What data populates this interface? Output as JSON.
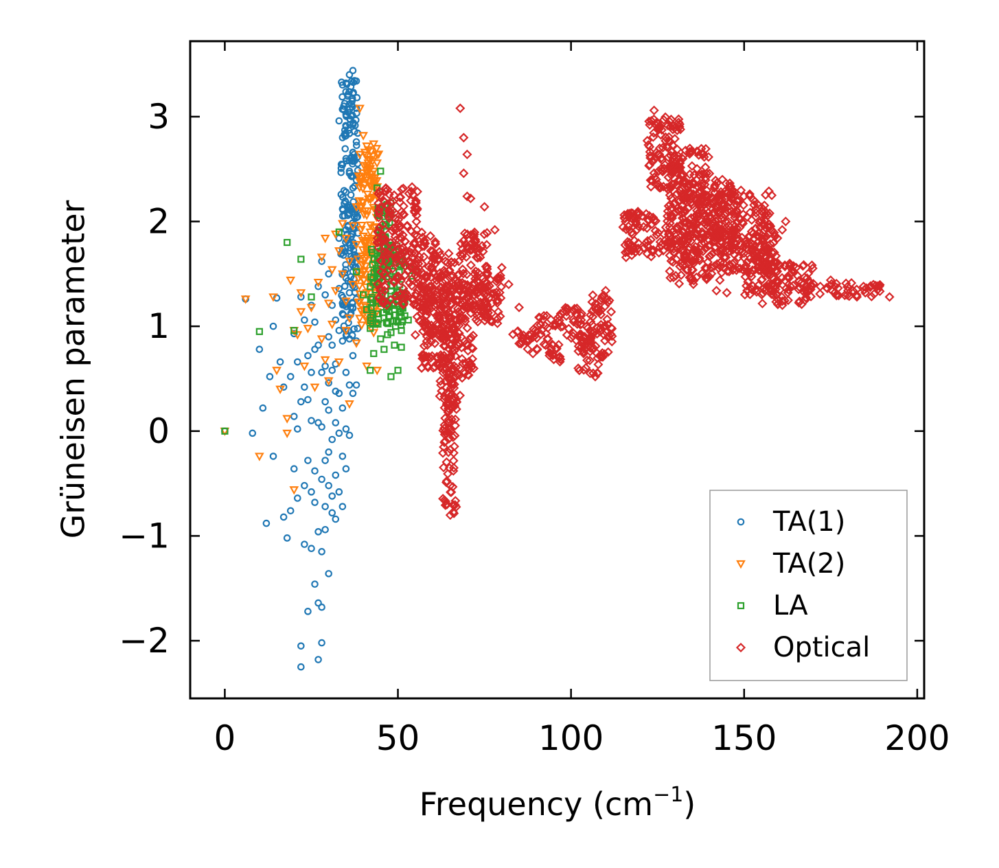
{
  "chart_data": {
    "type": "scatter",
    "title": "",
    "xlabel": "Frequency (cm",
    "xlabel_sup": "−1",
    "xlabel_close": ")",
    "ylabel": "Grüneisen parameter",
    "xlim": [
      -10,
      202
    ],
    "ylim": [
      -2.55,
      3.72
    ],
    "xticks": [
      0,
      50,
      100,
      150,
      200
    ],
    "xtick_labels": [
      "0",
      "50",
      "100",
      "150",
      "200"
    ],
    "yticks": [
      -2,
      -1,
      0,
      1,
      2,
      3
    ],
    "ytick_labels": [
      "−2",
      "−1",
      "0",
      "1",
      "2",
      "3"
    ],
    "legend_position": "lower-right",
    "grid": false,
    "series": [
      {
        "name": "TA(1)",
        "marker": "circle",
        "color": "#1f77b4",
        "points": [
          [
            0,
            0
          ],
          [
            6,
            1.26
          ],
          [
            8,
            -0.02
          ],
          [
            10,
            0.78
          ],
          [
            11,
            0.22
          ],
          [
            12,
            -0.88
          ],
          [
            13,
            0.52
          ],
          [
            14,
            1
          ],
          [
            14,
            -0.24
          ],
          [
            15,
            1.27
          ],
          [
            16,
            0.66
          ],
          [
            17,
            0.42
          ],
          [
            17,
            -0.82
          ],
          [
            18,
            -1.02
          ],
          [
            19,
            0.52
          ],
          [
            19,
            -0.76
          ],
          [
            20,
            0.93
          ],
          [
            20,
            -0.36
          ],
          [
            20,
            0.14
          ],
          [
            21,
            0.66
          ],
          [
            21,
            -0.64
          ],
          [
            21,
            0.02
          ],
          [
            22,
            1.28
          ],
          [
            22,
            0.28
          ],
          [
            22,
            -2.05
          ],
          [
            22,
            -2.25
          ],
          [
            23,
            1.06
          ],
          [
            23,
            0.42
          ],
          [
            23,
            -1.08
          ],
          [
            23,
            -0.52
          ],
          [
            24,
            0.72
          ],
          [
            24,
            0.3
          ],
          [
            24,
            -0.28
          ],
          [
            24,
            -1.72
          ],
          [
            25,
            1.2
          ],
          [
            25,
            0.56
          ],
          [
            25,
            -0.58
          ],
          [
            25,
            -1.12
          ],
          [
            25,
            0.1
          ],
          [
            26,
            1.04
          ],
          [
            26,
            0.78
          ],
          [
            26,
            -0.68
          ],
          [
            26,
            -1.46
          ],
          [
            26,
            -0.38
          ],
          [
            27,
            1.38
          ],
          [
            27,
            0.82
          ],
          [
            27,
            0.08
          ],
          [
            27,
            -0.96
          ],
          [
            27,
            -1.64
          ],
          [
            27,
            -2.18
          ],
          [
            28,
            1.62
          ],
          [
            28,
            0.56
          ],
          [
            28,
            0.04
          ],
          [
            28,
            -0.46
          ],
          [
            28,
            -1.15
          ],
          [
            28,
            -2.02
          ],
          [
            28,
            -1.68
          ],
          [
            29,
            1.3
          ],
          [
            29,
            0.62
          ],
          [
            29,
            0.28
          ],
          [
            29,
            -0.28
          ],
          [
            29,
            -0.72
          ],
          [
            29,
            -0.94
          ],
          [
            30,
            1.5
          ],
          [
            30,
            0.9
          ],
          [
            30,
            0.46
          ],
          [
            30,
            0.2
          ],
          [
            30,
            -0.2
          ],
          [
            30,
            -0.52
          ],
          [
            30,
            -1.36
          ],
          [
            31,
            1.2
          ],
          [
            31,
            0.82
          ],
          [
            31,
            0.58
          ],
          [
            31,
            -0.08
          ],
          [
            31,
            -0.62
          ],
          [
            31,
            -0.78
          ],
          [
            32,
            1.06
          ],
          [
            32,
            0.64
          ],
          [
            32,
            0.38
          ],
          [
            32,
            0.08
          ],
          [
            32,
            -0.42
          ],
          [
            32,
            -0.84
          ],
          [
            33,
            1.84
          ],
          [
            33,
            1.36
          ],
          [
            33,
            0.96
          ],
          [
            33,
            0.36
          ],
          [
            33,
            -0.02
          ],
          [
            33,
            -0.58
          ],
          [
            33,
            2.96
          ],
          [
            34,
            2.8
          ],
          [
            34,
            2.54
          ],
          [
            34,
            2.12
          ],
          [
            34,
            1.74
          ],
          [
            34,
            1.12
          ],
          [
            34,
            0.86
          ],
          [
            34,
            0.22
          ],
          [
            34,
            -0.24
          ],
          [
            34,
            -0.72
          ],
          [
            35,
            3.32
          ],
          [
            35,
            3.02
          ],
          [
            35,
            2.6
          ],
          [
            35,
            2.28
          ],
          [
            35,
            1.92
          ],
          [
            35,
            1.46
          ],
          [
            35,
            0.96
          ],
          [
            35,
            0.56
          ],
          [
            35,
            0.02
          ],
          [
            35,
            -0.36
          ],
          [
            36,
            3.4
          ],
          [
            36,
            3.12
          ],
          [
            36,
            2.84
          ],
          [
            36,
            2.48
          ],
          [
            36,
            2.08
          ],
          [
            36,
            1.72
          ],
          [
            36,
            1.32
          ],
          [
            36,
            0.88
          ],
          [
            36,
            0.44
          ],
          [
            36,
            -0.04
          ],
          [
            37,
            3.44
          ],
          [
            37,
            3.22
          ],
          [
            37,
            2.94
          ],
          [
            37,
            2.66
          ],
          [
            37,
            2.32
          ],
          [
            37,
            1.94
          ],
          [
            37,
            1.58
          ],
          [
            37,
            1.18
          ],
          [
            37,
            0.72
          ],
          [
            37,
            0.36
          ],
          [
            38,
            3.34
          ],
          [
            38,
            3.08
          ],
          [
            38,
            2.76
          ],
          [
            38,
            2.44
          ],
          [
            38,
            2.12
          ],
          [
            38,
            1.62
          ],
          [
            38,
            1.26
          ],
          [
            38,
            0.86
          ],
          [
            38,
            0.44
          ]
        ],
        "bands": [
          [
            33.5,
            38.5,
            0.9,
            3.35
          ]
        ]
      },
      {
        "name": "TA(2)",
        "marker": "triangle-down",
        "color": "#ff7f0e",
        "points": [
          [
            0,
            0
          ],
          [
            6,
            1.26
          ],
          [
            10,
            -0.24
          ],
          [
            14,
            1.28
          ],
          [
            15,
            0.58
          ],
          [
            16,
            0.4
          ],
          [
            18,
            0.12
          ],
          [
            18,
            -0.02
          ],
          [
            19,
            1.44
          ],
          [
            20,
            0.96
          ],
          [
            20,
            -0.56
          ],
          [
            21,
            0.92
          ],
          [
            22,
            1.14
          ],
          [
            22,
            1.32
          ],
          [
            23,
            0.62
          ],
          [
            24,
            0.98
          ],
          [
            25,
            1.18
          ],
          [
            26,
            0.42
          ],
          [
            27,
            1.42
          ],
          [
            28,
            1.66
          ],
          [
            28,
            0.88
          ],
          [
            29,
            0.68
          ],
          [
            29,
            1.84
          ],
          [
            30,
            1.22
          ],
          [
            30,
            0.48
          ],
          [
            31,
            1.54
          ],
          [
            31,
            1.02
          ],
          [
            32,
            1.88
          ],
          [
            32,
            1.34
          ],
          [
            33,
            0.66
          ],
          [
            33,
            1.72
          ],
          [
            34,
            1.98
          ],
          [
            34,
            1.5
          ],
          [
            35,
            1.84
          ],
          [
            35,
            1.24
          ],
          [
            35,
            0.96
          ],
          [
            36,
            1.62
          ],
          [
            36,
            1.08
          ],
          [
            36,
            0.26
          ],
          [
            37,
            1.96
          ],
          [
            37,
            1.4
          ],
          [
            38,
            2.14
          ],
          [
            38,
            0.84
          ],
          [
            38,
            1.78
          ],
          [
            39,
            2.64
          ],
          [
            39,
            3.08
          ],
          [
            39,
            2.38
          ],
          [
            40,
            2.82
          ],
          [
            40,
            2.18
          ],
          [
            40,
            1.86
          ],
          [
            40,
            1.52
          ],
          [
            40,
            1.16
          ],
          [
            41,
            2.72
          ],
          [
            41,
            2.42
          ],
          [
            41,
            2.06
          ],
          [
            41,
            1.66
          ],
          [
            41,
            1.32
          ],
          [
            41,
            0.62
          ],
          [
            42,
            2.58
          ],
          [
            42,
            2.22
          ],
          [
            42,
            1.9
          ],
          [
            42,
            1.42
          ],
          [
            42,
            1.12
          ],
          [
            43,
            2.74
          ],
          [
            43,
            2.36
          ],
          [
            43,
            1.94
          ],
          [
            43,
            1.6
          ],
          [
            43,
            0.94
          ],
          [
            44,
            1.82
          ],
          [
            44,
            1.52
          ],
          [
            44,
            1.26
          ],
          [
            44,
            0.58
          ]
        ],
        "bands": [
          [
            38.5,
            44.5,
            1.0,
            2.7
          ]
        ]
      },
      {
        "name": "LA",
        "marker": "square",
        "color": "#2ca02c",
        "points": [
          [
            0,
            0
          ],
          [
            10,
            0.95
          ],
          [
            18,
            1.8
          ],
          [
            20,
            0.96
          ],
          [
            22,
            1.64
          ],
          [
            25,
            1.28
          ],
          [
            33,
            1.9
          ],
          [
            38,
            1.52
          ],
          [
            40,
            1.3
          ],
          [
            41,
            1.16
          ],
          [
            42,
            0.98
          ],
          [
            42,
            0.58
          ],
          [
            43,
            1.42
          ],
          [
            43,
            0.74
          ],
          [
            44,
            1.24
          ],
          [
            44,
            2.32
          ],
          [
            45,
            2.48
          ],
          [
            45,
            1.86
          ],
          [
            45,
            0.88
          ],
          [
            46,
            1.52
          ],
          [
            46,
            1.08
          ],
          [
            46,
            0.78
          ],
          [
            47,
            0.92
          ],
          [
            47,
            1.72
          ],
          [
            48,
            1.26
          ],
          [
            48,
            0.94
          ],
          [
            48,
            0.52
          ],
          [
            49,
            1.16
          ],
          [
            49,
            0.82
          ],
          [
            50,
            0.58
          ],
          [
            50,
            1.04
          ],
          [
            51,
            0.96
          ],
          [
            51,
            0.8
          ],
          [
            52,
            1.24
          ],
          [
            52,
            1.1
          ],
          [
            53,
            1.06
          ],
          [
            54,
            1.48
          ],
          [
            55,
            1.54
          ]
        ],
        "bands": [
          [
            42,
            52,
            1.0,
            1.8
          ],
          [
            44,
            48,
            1.6,
            2.2
          ]
        ]
      },
      {
        "name": "Optical",
        "marker": "diamond",
        "color": "#d62728",
        "points": [
          [
            68,
            3.08
          ],
          [
            69,
            2.8
          ],
          [
            70,
            2.64
          ],
          [
            69,
            2.46
          ],
          [
            70,
            2.24
          ],
          [
            71,
            2.22
          ],
          [
            75,
            2.14
          ],
          [
            78,
            1.92
          ],
          [
            80,
            1.56
          ],
          [
            82,
            1.4
          ],
          [
            85,
            1.18
          ],
          [
            87,
            0.86
          ],
          [
            89,
            0.74
          ],
          [
            97,
            1.12
          ],
          [
            107,
            0.52
          ],
          [
            110,
            1.34
          ],
          [
            124,
            3.06
          ],
          [
            142,
            1.34
          ],
          [
            143,
            1.44
          ],
          [
            144,
            1.56
          ],
          [
            145,
            1.32
          ],
          [
            159,
            1.86
          ],
          [
            161,
            1.92
          ],
          [
            162,
            2.0
          ],
          [
            172,
            1.38
          ],
          [
            175,
            1.44
          ],
          [
            180,
            1.34
          ],
          [
            185,
            1.32
          ],
          [
            192,
            1.28
          ]
        ],
        "bands": [
          [
            44,
            56,
            1.2,
            2.35
          ],
          [
            55,
            62,
            0.9,
            1.9
          ],
          [
            56,
            64,
            0.6,
            1.5
          ],
          [
            62,
            68,
            0.2,
            1.7
          ],
          [
            63,
            67,
            -0.82,
            0.5
          ],
          [
            64,
            72,
            0.5,
            1.4
          ],
          [
            68,
            76,
            1.1,
            1.9
          ],
          [
            72,
            80,
            1.0,
            1.5
          ],
          [
            83,
            90,
            0.78,
            0.98
          ],
          [
            90,
            97,
            0.66,
            1.12
          ],
          [
            97,
            104,
            0.85,
            1.18
          ],
          [
            102,
            108,
            0.55,
            1.05
          ],
          [
            105,
            112,
            0.7,
            1.3
          ],
          [
            115,
            130,
            1.65,
            2.1
          ],
          [
            122,
            132,
            2.3,
            3.0
          ],
          [
            128,
            140,
            1.4,
            2.7
          ],
          [
            132,
            148,
            1.7,
            2.4
          ],
          [
            140,
            158,
            1.5,
            2.3
          ],
          [
            150,
            160,
            1.3,
            1.9
          ],
          [
            155,
            170,
            1.2,
            1.6
          ],
          [
            168,
            190,
            1.28,
            1.42
          ]
        ]
      }
    ]
  }
}
